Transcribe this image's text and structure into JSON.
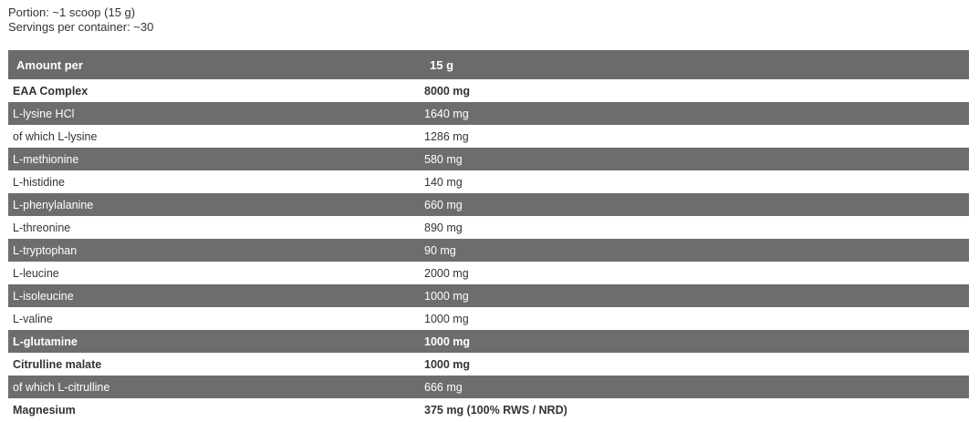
{
  "info": {
    "portion": "Portion: ~1 scoop (15 g)",
    "servings": "Servings per container: ~30"
  },
  "table": {
    "header": {
      "label": "Amount per",
      "value": "15 g"
    },
    "rows": [
      {
        "name": "EAA Complex",
        "value": "8000 mg",
        "style": "light b"
      },
      {
        "name": "L-lysine HCl",
        "value": "1640 mg",
        "style": "dark"
      },
      {
        "name": "of which L-lysine",
        "value": "1286 mg",
        "style": "light"
      },
      {
        "name": "L-methionine",
        "value": "580 mg",
        "style": "dark"
      },
      {
        "name": "L-histidine",
        "value": "140 mg",
        "style": "light"
      },
      {
        "name": "L-phenylalanine",
        "value": "660 mg",
        "style": "dark"
      },
      {
        "name": "L-threonine",
        "value": "890 mg",
        "style": "light"
      },
      {
        "name": "L-tryptophan",
        "value": "90 mg",
        "style": "dark"
      },
      {
        "name": "L-leucine",
        "value": "2000 mg",
        "style": "light"
      },
      {
        "name": "L-isoleucine",
        "value": "1000 mg",
        "style": "dark"
      },
      {
        "name": "L-valine",
        "value": "1000 mg",
        "style": "light"
      },
      {
        "name": "L-glutamine",
        "value": "1000 mg",
        "style": "dark b"
      },
      {
        "name": "Citrulline malate",
        "value": "1000 mg",
        "style": "light b"
      },
      {
        "name": "of which L-citrulline",
        "value": "666 mg",
        "style": "dark"
      },
      {
        "name": "Magnesium",
        "value": "375 mg (100% RWS / NRD)",
        "style": "light b"
      }
    ]
  },
  "colors": {
    "dark_row": "#6d6d6d",
    "text": "#222222"
  }
}
